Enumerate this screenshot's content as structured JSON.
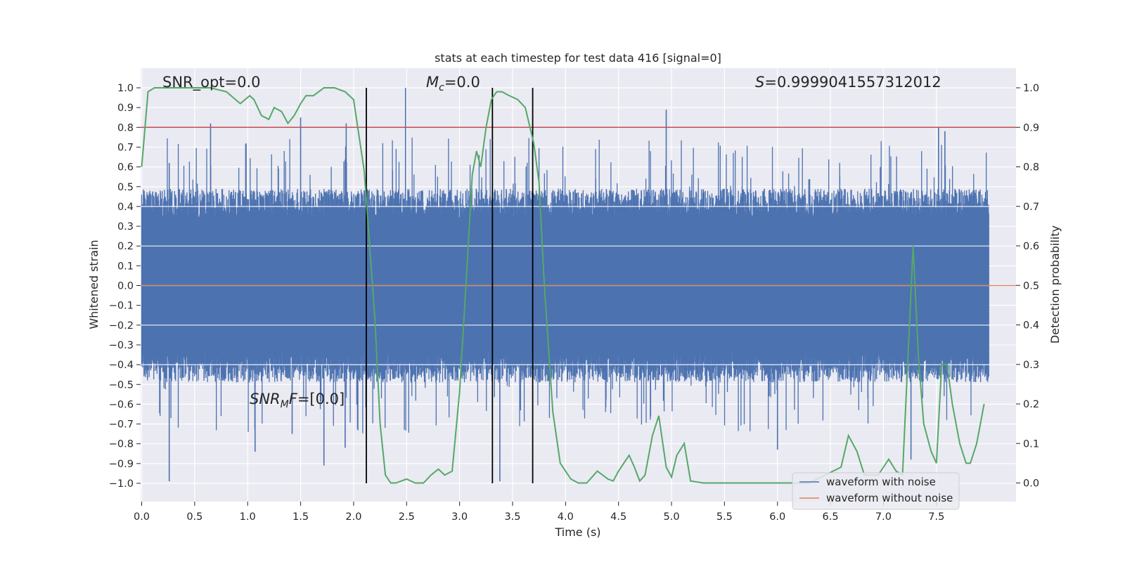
{
  "chart_data": {
    "type": "line",
    "title": "stats at each timestep for test data 416 [signal=0]",
    "xlabel": "Time (s)",
    "ylabel": "Whitened strain",
    "y2label": "Detection probability",
    "xlim": [
      0.0,
      8.0
    ],
    "ylim": [
      -1.1,
      1.1
    ],
    "y2lim": [
      -0.05,
      1.05
    ],
    "x_ticks": [
      "0.0",
      "0.5",
      "1.0",
      "1.5",
      "2.0",
      "2.5",
      "3.0",
      "3.5",
      "4.0",
      "4.5",
      "5.0",
      "5.5",
      "6.0",
      "6.5",
      "7.0",
      "7.5"
    ],
    "y_ticks": [
      "1.0",
      "0.9",
      "0.8",
      "0.7",
      "0.6",
      "0.5",
      "0.4",
      "0.3",
      "0.2",
      "0.1",
      "0.0",
      "−0.1",
      "−0.2",
      "−0.3",
      "−0.4",
      "−0.5",
      "−0.6",
      "−0.7",
      "−0.8",
      "−0.9",
      "−1.0"
    ],
    "y2_ticks": [
      "1.0",
      "0.9",
      "0.8",
      "0.7",
      "0.6",
      "0.5",
      "0.4",
      "0.3",
      "0.2",
      "0.1",
      "0.0"
    ],
    "grid": true,
    "legend_position": "lower-right",
    "annotations": {
      "snr_opt_text": "SNR_opt=0.0",
      "mc_symbol": "M",
      "mc_sub": "c",
      "mc_value": "=0.0",
      "s_symbol": "S",
      "s_value": "=0.9999041557312012",
      "snr_mf_symbol": "SNR",
      "snr_mf_sub": "M",
      "snr_mf_rest": "F",
      "snr_mf_value": "=[0.0]"
    },
    "colors": {
      "waveform_with_noise": "#4c72b0",
      "waveform_without_noise": "#dd8452",
      "detection_probability": "#55a868",
      "threshold": "#c44e52",
      "markers": "#000000",
      "background": "#eaeaf2",
      "grid": "#ffffff"
    },
    "series": [
      {
        "name": "waveform with noise",
        "description_envelope": "noise band mostly within ±0.45 with spikes",
        "peaks_up": [
          [
            0.26,
            0.62
          ],
          [
            0.65,
            0.82
          ],
          [
            1.5,
            0.85
          ],
          [
            1.93,
            0.82
          ],
          [
            2.49,
            1.0
          ],
          [
            4.95,
            0.89
          ],
          [
            7.52,
            0.8
          ],
          [
            7.58,
            0.78
          ]
        ],
        "peaks_down": [
          [
            0.26,
            -0.99
          ],
          [
            1.07,
            -0.84
          ],
          [
            1.42,
            -0.75
          ],
          [
            1.72,
            -0.91
          ],
          [
            1.92,
            -0.82
          ],
          [
            3.38,
            -0.99
          ],
          [
            6.0,
            -0.83
          ],
          [
            7.26,
            -0.88
          ]
        ]
      },
      {
        "name": "waveform without noise",
        "values_constant": 0.0
      },
      {
        "name": "",
        "axis": "right",
        "x": [
          0.0,
          0.06,
          0.12,
          0.2,
          0.35,
          0.5,
          0.65,
          0.8,
          0.93,
          1.02,
          1.06,
          1.13,
          1.2,
          1.25,
          1.32,
          1.38,
          1.44,
          1.5,
          1.55,
          1.62,
          1.72,
          1.82,
          1.92,
          2.0,
          2.1,
          2.2,
          2.25,
          2.3,
          2.35,
          2.4,
          2.45,
          2.5,
          2.58,
          2.66,
          2.73,
          2.8,
          2.86,
          2.93,
          3.0,
          3.06,
          3.12,
          3.16,
          3.2,
          3.25,
          3.3,
          3.35,
          3.4,
          3.47,
          3.55,
          3.62,
          3.7,
          3.75,
          3.8,
          3.88,
          3.95,
          4.05,
          4.12,
          4.2,
          4.3,
          4.4,
          4.45,
          4.5,
          4.6,
          4.65,
          4.7,
          4.75,
          4.82,
          4.88,
          4.95,
          5.0,
          5.05,
          5.12,
          5.18,
          5.3,
          5.45,
          5.6,
          5.8,
          6.0,
          6.3,
          6.6,
          6.67,
          6.75,
          6.82,
          6.95,
          7.0,
          7.05,
          7.12,
          7.18,
          7.28,
          7.33,
          7.38,
          7.45,
          7.5,
          7.55,
          7.6,
          7.65,
          7.72,
          7.78,
          7.82,
          7.88,
          7.95
        ],
        "values": [
          0.8,
          0.99,
          1.0,
          1.0,
          1.0,
          1.0,
          1.0,
          0.99,
          0.96,
          0.98,
          0.97,
          0.93,
          0.92,
          0.95,
          0.94,
          0.91,
          0.93,
          0.96,
          0.98,
          0.98,
          1.0,
          1.0,
          0.99,
          0.97,
          0.79,
          0.42,
          0.15,
          0.02,
          0.0,
          0.0,
          0.005,
          0.01,
          0.0,
          0.0,
          0.02,
          0.035,
          0.02,
          0.03,
          0.23,
          0.5,
          0.78,
          0.84,
          0.8,
          0.9,
          0.97,
          0.99,
          0.99,
          0.98,
          0.97,
          0.95,
          0.86,
          0.76,
          0.5,
          0.18,
          0.05,
          0.01,
          0.0,
          0.0,
          0.03,
          0.01,
          0.005,
          0.03,
          0.07,
          0.04,
          0.005,
          0.02,
          0.12,
          0.17,
          0.04,
          0.015,
          0.07,
          0.1,
          0.005,
          0.0,
          0.0,
          0.0,
          0.0,
          0.0,
          0.0,
          0.04,
          0.12,
          0.08,
          0.02,
          0.02,
          0.04,
          0.06,
          0.03,
          0.02,
          0.6,
          0.32,
          0.15,
          0.08,
          0.05,
          0.3,
          0.3,
          0.2,
          0.1,
          0.05,
          0.05,
          0.1,
          0.2
        ]
      }
    ],
    "threshold_line": {
      "axis": "right",
      "value": 0.9
    },
    "vertical_markers": [
      2.12,
      3.31,
      3.69
    ],
    "legend": [
      "waveform with noise",
      "waveform without noise"
    ]
  }
}
